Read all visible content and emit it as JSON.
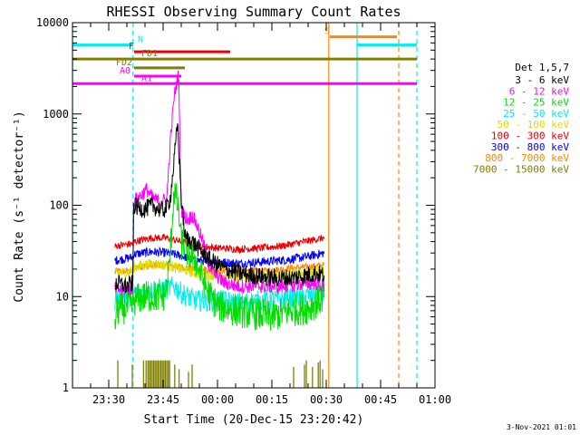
{
  "chart_data": {
    "type": "line",
    "title": "RHESSI Observing Summary Count Rates",
    "xlabel": "Start Time (20-Dec-15 23:20:42)",
    "ylabel": "Count Rate (s⁻¹ detector⁻¹)",
    "yscale": "log",
    "ylim": [
      1,
      10000
    ],
    "xlim_minutes_after_2320": [
      0,
      100
    ],
    "x_ticks": [
      {
        "label": "23:30",
        "m": 10
      },
      {
        "label": "23:45",
        "m": 25
      },
      {
        "label": "00:00",
        "m": 40
      },
      {
        "label": "00:15",
        "m": 55
      },
      {
        "label": "00:30",
        "m": 70
      },
      {
        "label": "00:45",
        "m": 85
      },
      {
        "label": "01:00",
        "m": 100
      }
    ],
    "y_ticks": [
      {
        "label": "1",
        "v": 1
      },
      {
        "label": "10",
        "v": 10
      },
      {
        "label": "100",
        "v": 100
      },
      {
        "label": "1000",
        "v": 1000
      },
      {
        "label": "10000",
        "v": 10000
      }
    ],
    "legend": {
      "title": "Det 1,5,7",
      "placement": "right",
      "entries": [
        {
          "name": "3 - 6 keV",
          "color": "#000000"
        },
        {
          "name": "6 - 12 keV",
          "color": "#ff00ff"
        },
        {
          "name": "12 - 25 keV",
          "color": "#00dd00"
        },
        {
          "name": "25 - 50 keV",
          "color": "#00eeee"
        },
        {
          "name": "50 - 100 keV",
          "color": "#dddd00"
        },
        {
          "name": "100 - 300 keV",
          "color": "#ee0000"
        },
        {
          "name": "300 - 800 keV",
          "color": "#0000ff"
        },
        {
          "name": "800 - 7000 keV",
          "color": "#ff8800"
        },
        {
          "name": "7000 - 15000 keV",
          "color": "#808000"
        }
      ]
    },
    "series": [
      {
        "name": "3 - 6 keV",
        "color": "#000000",
        "noise": 0.1,
        "points": [
          [
            11.7,
            13
          ],
          [
            12,
            14
          ],
          [
            15,
            13
          ],
          [
            16.7,
            14
          ],
          [
            16.8,
            100
          ],
          [
            18,
            95
          ],
          [
            20,
            90
          ],
          [
            22,
            100
          ],
          [
            24,
            90
          ],
          [
            25,
            88
          ],
          [
            26,
            95
          ],
          [
            27,
            120
          ],
          [
            28,
            300
          ],
          [
            29,
            800
          ],
          [
            30,
            120
          ],
          [
            31,
            45
          ],
          [
            33,
            40
          ],
          [
            36,
            30
          ],
          [
            38,
            25
          ],
          [
            42,
            20
          ],
          [
            46,
            18
          ],
          [
            50,
            17
          ],
          [
            55,
            16
          ],
          [
            60,
            16
          ],
          [
            64,
            17
          ],
          [
            67,
            18
          ],
          [
            69.5,
            17
          ],
          [
            69.6,
            0
          ]
        ]
      },
      {
        "name": "6 - 12 keV",
        "color": "#ff00ff",
        "noise": 0.08,
        "points": [
          [
            11.7,
            12
          ],
          [
            12,
            12
          ],
          [
            16.7,
            12
          ],
          [
            16.8,
            110
          ],
          [
            18,
            120
          ],
          [
            19.5,
            135
          ],
          [
            20.5,
            150
          ],
          [
            22,
            120
          ],
          [
            24,
            110
          ],
          [
            26,
            115
          ],
          [
            27,
            500
          ],
          [
            28,
            1500
          ],
          [
            29,
            2500
          ],
          [
            29.3,
            2600
          ],
          [
            30,
            90
          ],
          [
            31,
            75
          ],
          [
            32,
            70
          ],
          [
            33,
            78
          ],
          [
            34,
            65
          ],
          [
            36,
            40
          ],
          [
            38,
            20
          ],
          [
            42,
            14
          ],
          [
            46,
            13
          ],
          [
            52,
            13
          ],
          [
            58,
            13
          ],
          [
            64,
            14
          ],
          [
            67,
            14
          ],
          [
            69.5,
            13
          ],
          [
            69.6,
            0
          ]
        ]
      },
      {
        "name": "12 - 25 keV",
        "color": "#00dd00",
        "noise": 0.18,
        "points": [
          [
            11.7,
            4
          ],
          [
            12,
            7
          ],
          [
            16.7,
            8
          ],
          [
            16.8,
            9
          ],
          [
            20,
            10
          ],
          [
            25,
            10
          ],
          [
            26,
            12
          ],
          [
            27,
            30
          ],
          [
            28,
            150
          ],
          [
            29,
            100
          ],
          [
            29.5,
            70
          ],
          [
            30,
            40
          ],
          [
            32,
            30
          ],
          [
            34,
            25
          ],
          [
            36,
            15
          ],
          [
            38,
            10
          ],
          [
            40,
            8
          ],
          [
            45,
            7
          ],
          [
            50,
            6.5
          ],
          [
            55,
            6
          ],
          [
            60,
            7
          ],
          [
            65,
            7.5
          ],
          [
            69.5,
            10
          ],
          [
            69.6,
            0
          ]
        ]
      },
      {
        "name": "25 - 50 keV",
        "color": "#00eeee",
        "noise": 0.12,
        "points": [
          [
            11.7,
            9
          ],
          [
            12,
            10
          ],
          [
            16.7,
            10
          ],
          [
            16.8,
            11
          ],
          [
            22,
            12
          ],
          [
            26,
            12
          ],
          [
            28,
            13
          ],
          [
            30,
            11
          ],
          [
            34,
            9
          ],
          [
            40,
            9
          ],
          [
            46,
            8.5
          ],
          [
            52,
            9
          ],
          [
            58,
            9.5
          ],
          [
            64,
            10
          ],
          [
            69.5,
            11
          ],
          [
            69.6,
            0
          ]
        ]
      },
      {
        "name": "50 - 100 keV",
        "color": "#dddd00",
        "noise": 0.06,
        "points": [
          [
            11.7,
            17
          ],
          [
            12,
            18
          ],
          [
            16.7,
            19
          ],
          [
            16.8,
            21
          ],
          [
            22,
            23
          ],
          [
            26,
            22
          ],
          [
            30,
            20
          ],
          [
            34,
            18
          ],
          [
            40,
            17
          ],
          [
            46,
            16.5
          ],
          [
            52,
            17
          ],
          [
            58,
            17
          ],
          [
            64,
            18
          ],
          [
            69.5,
            19
          ],
          [
            69.6,
            0
          ]
        ]
      },
      {
        "name": "100 - 300 keV",
        "color": "#ee0000",
        "noise": 0.04,
        "points": [
          [
            11.7,
            35
          ],
          [
            12,
            36
          ],
          [
            16.7,
            38
          ],
          [
            16.8,
            40
          ],
          [
            22,
            44
          ],
          [
            26,
            44
          ],
          [
            30,
            40
          ],
          [
            34,
            36
          ],
          [
            40,
            34
          ],
          [
            46,
            33
          ],
          [
            52,
            34
          ],
          [
            58,
            36
          ],
          [
            64,
            40
          ],
          [
            69.5,
            44
          ],
          [
            69.6,
            0
          ]
        ]
      },
      {
        "name": "300 - 800 keV",
        "color": "#0000ff",
        "noise": 0.05,
        "points": [
          [
            11.7,
            25
          ],
          [
            12,
            25
          ],
          [
            16.7,
            27
          ],
          [
            16.8,
            29
          ],
          [
            22,
            31
          ],
          [
            26,
            30
          ],
          [
            30,
            28
          ],
          [
            34,
            25
          ],
          [
            40,
            24
          ],
          [
            46,
            23
          ],
          [
            52,
            24
          ],
          [
            58,
            25
          ],
          [
            64,
            27
          ],
          [
            69.5,
            30
          ],
          [
            69.6,
            0
          ]
        ]
      },
      {
        "name": "800 - 7000 keV",
        "color": "#ff8800",
        "noise": 0.04,
        "points": [
          [
            11.7,
            18
          ],
          [
            12,
            19
          ],
          [
            16.7,
            19
          ],
          [
            16.8,
            21
          ],
          [
            22,
            22
          ],
          [
            26,
            22
          ],
          [
            30,
            21
          ],
          [
            34,
            20
          ],
          [
            40,
            19
          ],
          [
            46,
            19
          ],
          [
            52,
            19
          ],
          [
            58,
            20
          ],
          [
            64,
            21
          ],
          [
            69.5,
            22
          ],
          [
            69.6,
            0
          ]
        ]
      }
    ],
    "bars_7000_15000": {
      "color": "#808000",
      "spikes": [
        [
          12.5,
          2
        ],
        [
          16.5,
          1.8
        ],
        [
          19.6,
          2
        ],
        [
          20.3,
          2
        ],
        [
          20.8,
          2
        ],
        [
          21.2,
          2
        ],
        [
          21.6,
          2
        ],
        [
          22,
          2
        ],
        [
          22.4,
          2
        ],
        [
          22.8,
          2
        ],
        [
          23.2,
          2
        ],
        [
          23.6,
          2
        ],
        [
          24,
          2
        ],
        [
          24.4,
          2
        ],
        [
          24.8,
          2
        ],
        [
          25.2,
          2
        ],
        [
          25.6,
          2
        ],
        [
          26,
          2
        ],
        [
          26.4,
          2
        ],
        [
          26.8,
          2
        ],
        [
          28.2,
          1.8
        ],
        [
          29.4,
          1.6
        ],
        [
          32,
          1.5
        ],
        [
          33,
          1.8
        ],
        [
          61,
          1.7
        ],
        [
          64,
          1.8
        ],
        [
          64.5,
          2
        ],
        [
          66.2,
          1.7
        ],
        [
          67.8,
          1.9
        ],
        [
          68.3,
          2
        ],
        [
          69,
          1.6
        ]
      ]
    },
    "flag_lines": [
      {
        "label": "N",
        "color": "#00eeee",
        "value": 5700,
        "segments": [
          [
            0,
            16.7
          ],
          [
            78.5,
            95
          ]
        ],
        "label_at": 18
      },
      {
        "label": "S",
        "color": "#ff8800",
        "value": 7000,
        "segments": [
          [
            71,
            89.5
          ]
        ],
        "label_at": 69.5
      },
      {
        "label": "F",
        "color": "#ee0000",
        "value": 4800,
        "segments": [
          [
            17,
            43.5
          ]
        ],
        "label_at": 15.5
      },
      {
        "label": "FD1",
        "color": "#808000",
        "value": 4000,
        "segments": [
          [
            0,
            95
          ]
        ],
        "label_at": 19
      },
      {
        "label": "FD2",
        "color": "#808000",
        "value": 3200,
        "segments": [
          [
            17,
            31
          ]
        ],
        "label_at": 12
      },
      {
        "label": "A0",
        "color": "#ff00ff",
        "value": 2600,
        "segments": [
          [
            17,
            30
          ]
        ],
        "label_at": 13
      },
      {
        "label": "A1",
        "color": "#ff00ff",
        "value": 2150,
        "segments": [
          [
            0,
            95
          ]
        ],
        "label_at": 19
      }
    ],
    "vertical_markers": [
      {
        "m": 0,
        "color": "#00eeee",
        "style": "solid"
      },
      {
        "m": 16.7,
        "color": "#00eeee",
        "style": "dashed"
      },
      {
        "m": 70.7,
        "color": "#ff8800",
        "style": "solid"
      },
      {
        "m": 78.5,
        "color": "#00eeee",
        "style": "solid"
      },
      {
        "m": 90,
        "color": "#ff8800",
        "style": "dashed"
      },
      {
        "m": 95,
        "color": "#00eeee",
        "style": "dashed"
      }
    ]
  },
  "footer": {
    "date_stamp": "3-Nov-2021 01:01"
  }
}
